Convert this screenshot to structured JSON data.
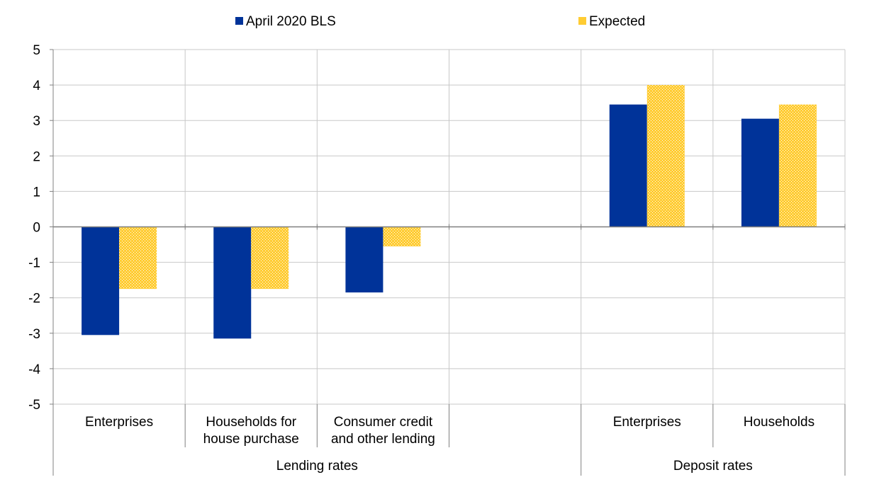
{
  "chart_data": {
    "type": "bar",
    "title": "",
    "xlabel": "",
    "ylabel": "",
    "ylim": [
      -5,
      5
    ],
    "yticks": [
      5,
      4,
      3,
      2,
      1,
      0,
      -1,
      -2,
      -3,
      -4,
      -5
    ],
    "grid": true,
    "legend_position": "top",
    "categories": [
      "Enterprises",
      "Households for house purchase",
      "Consumer credit and other lending",
      "",
      "Enterprises",
      "Households"
    ],
    "category_label_lines": [
      [
        "Enterprises"
      ],
      [
        "Households for",
        "house purchase"
      ],
      [
        "Consumer credit",
        "and other lending"
      ],
      [],
      [
        "Enterprises"
      ],
      [
        "Households"
      ]
    ],
    "groups": [
      {
        "label": "Lending rates",
        "start": 0,
        "end": 3
      },
      {
        "label": "Deposit rates",
        "start": 4,
        "end": 5
      }
    ],
    "series": [
      {
        "name": "April 2020 BLS",
        "color": "#003399",
        "pattern": "solid",
        "values": [
          -3.05,
          -3.15,
          -1.85,
          null,
          3.45,
          3.05
        ]
      },
      {
        "name": "Expected",
        "color": "#FFCC33",
        "pattern": "dotted",
        "values": [
          -1.75,
          -1.75,
          -0.55,
          null,
          4.0,
          3.45
        ]
      }
    ]
  }
}
